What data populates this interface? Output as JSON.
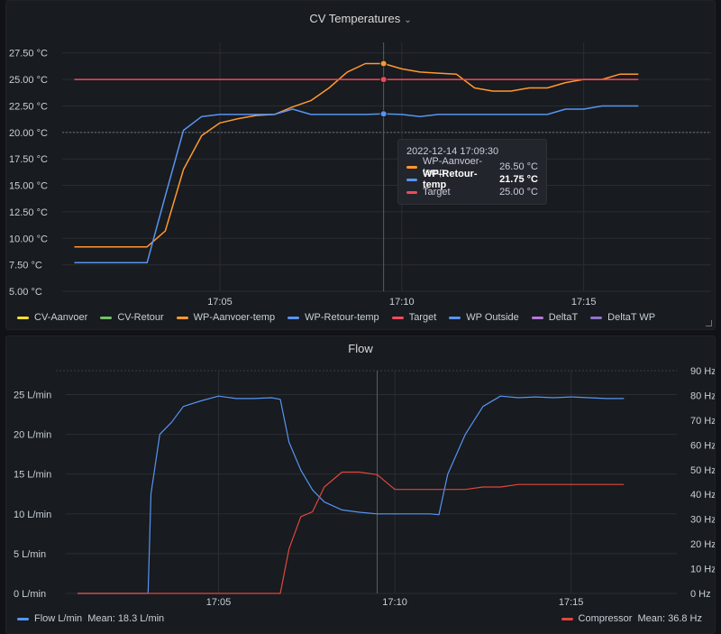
{
  "colors": {
    "orange": "#ff9830",
    "blue": "#5794f2",
    "red": "#f2495c",
    "yellow": "#fade2a",
    "green": "#73bf69",
    "purple": "#b877d9",
    "violet": "#8f74c9",
    "flow_blue": "#5794f2",
    "flow_red": "#e0473e"
  },
  "temp_panel": {
    "title": "CV Temperatures",
    "chevron_icon": "chevron-down-icon",
    "y_ticks": [
      "27.50 °C",
      "25.00 °C",
      "22.50 °C",
      "20.00 °C",
      "17.50 °C",
      "15.00 °C",
      "12.50 °C",
      "10.00 °C",
      "7.50 °C",
      "5.00 °C"
    ],
    "x_ticks": [
      "17:05",
      "17:10",
      "17:15"
    ],
    "legend": [
      {
        "name": "CV-Aanvoer",
        "color": "#fade2a"
      },
      {
        "name": "CV-Retour",
        "color": "#73bf69"
      },
      {
        "name": "WP-Aanvoer-temp",
        "color": "#ff9830"
      },
      {
        "name": "WP-Retour-temp",
        "color": "#5794f2"
      },
      {
        "name": "Target",
        "color": "#f2495c"
      },
      {
        "name": "WP Outside",
        "color": "#5794f2"
      },
      {
        "name": "DeltaT",
        "color": "#b877d9"
      },
      {
        "name": "DeltaT WP",
        "color": "#8f74c9"
      }
    ],
    "tooltip": {
      "time": "2022-12-14 17:09:30",
      "rows": [
        {
          "name": "WP-Aanvoer-temp",
          "value": "26.50 °C",
          "color": "#ff9830",
          "bold": false
        },
        {
          "name": "WP-Retour-temp",
          "value": "21.75 °C",
          "color": "#5794f2",
          "bold": true
        },
        {
          "name": "Target",
          "value": "25.00 °C",
          "color": "#f2495c",
          "bold": false
        }
      ]
    }
  },
  "flow_panel": {
    "title": "Flow",
    "y_left_ticks": [
      "25 L/min",
      "20 L/min",
      "15 L/min",
      "10 L/min",
      "5 L/min",
      "0 L/min"
    ],
    "y_right_ticks": [
      "90 Hz",
      "80 Hz",
      "70 Hz",
      "60 Hz",
      "50 Hz",
      "40 Hz",
      "30 Hz",
      "20 Hz",
      "10 Hz",
      "0 Hz"
    ],
    "x_ticks": [
      "17:05",
      "17:10",
      "17:15"
    ],
    "legend_left": {
      "name": "Flow L/min",
      "mean": "Mean: 18.3 L/min",
      "color": "#5794f2"
    },
    "legend_right": {
      "name": "Compressor",
      "mean": "Mean: 36.8 Hz",
      "color": "#e0473e"
    }
  },
  "chart_data": [
    {
      "type": "line",
      "title": "CV Temperatures",
      "ylabel": "°C",
      "ylim": [
        5,
        28.5
      ],
      "x": [
        "17:01",
        "17:02",
        "17:03",
        "17:03:30",
        "17:04",
        "17:04:30",
        "17:05",
        "17:05:30",
        "17:06",
        "17:06:30",
        "17:07",
        "17:07:30",
        "17:08",
        "17:08:30",
        "17:09",
        "17:09:30",
        "17:10",
        "17:10:30",
        "17:11",
        "17:11:30",
        "17:12",
        "17:12:30",
        "17:13",
        "17:13:30",
        "17:14",
        "17:14:30",
        "17:15",
        "17:15:30",
        "17:16",
        "17:16:30"
      ],
      "series": [
        {
          "name": "WP-Aanvoer-temp",
          "values": [
            9.2,
            9.2,
            9.2,
            10.7,
            16.5,
            19.7,
            20.9,
            21.3,
            21.6,
            21.7,
            22.4,
            23.0,
            24.2,
            25.7,
            26.5,
            26.5,
            26.0,
            25.7,
            25.6,
            25.5,
            24.2,
            23.9,
            23.9,
            24.2,
            24.2,
            24.7,
            25.0,
            25.0,
            25.5,
            25.5
          ]
        },
        {
          "name": "WP-Retour-temp",
          "values": [
            7.7,
            7.7,
            7.7,
            14.0,
            20.2,
            21.5,
            21.7,
            21.7,
            21.7,
            21.7,
            22.2,
            21.7,
            21.7,
            21.7,
            21.7,
            21.75,
            21.7,
            21.5,
            21.7,
            21.7,
            21.7,
            21.7,
            21.7,
            21.7,
            21.7,
            22.2,
            22.2,
            22.5,
            22.5,
            22.5
          ]
        },
        {
          "name": "Target",
          "values": [
            25,
            25,
            25,
            25,
            25,
            25,
            25,
            25,
            25,
            25,
            25,
            25,
            25,
            25,
            25,
            25,
            25,
            25,
            25,
            25,
            25,
            25,
            25,
            25,
            25,
            25,
            25,
            25,
            25,
            25
          ]
        }
      ]
    },
    {
      "type": "line",
      "title": "Flow",
      "ylabel": "L/min",
      "ylim": [
        0,
        28
      ],
      "y2label": "Hz",
      "y2lim": [
        0,
        90
      ],
      "x": [
        "17:01",
        "17:02",
        "17:03",
        "17:03:05",
        "17:03:20",
        "17:03:40",
        "17:04",
        "17:04:30",
        "17:05",
        "17:05:30",
        "17:06",
        "17:06:30",
        "17:06:45",
        "17:07",
        "17:07:20",
        "17:07:40",
        "17:08",
        "17:08:30",
        "17:09",
        "17:09:30",
        "17:10",
        "17:10:30",
        "17:11",
        "17:11:15",
        "17:11:30",
        "17:12",
        "17:12:30",
        "17:13",
        "17:13:30",
        "17:14",
        "17:14:30",
        "17:15",
        "17:15:30",
        "17:16",
        "17:16:30"
      ],
      "series": [
        {
          "name": "Flow L/min",
          "axis": "left",
          "values": [
            0,
            0,
            0,
            12.5,
            20,
            21.5,
            23.5,
            24.2,
            24.8,
            24.5,
            24.5,
            24.6,
            24.4,
            19,
            15.5,
            13,
            11.5,
            10.5,
            10.2,
            10.0,
            10.0,
            10.0,
            10.0,
            9.9,
            15,
            20,
            23.5,
            24.8,
            24.6,
            24.7,
            24.6,
            24.7,
            24.6,
            24.5,
            24.5
          ]
        },
        {
          "name": "Compressor",
          "axis": "right",
          "values": [
            0,
            0,
            0,
            0,
            0,
            0,
            0,
            0,
            0,
            0,
            0,
            0,
            0,
            18,
            31,
            33,
            43,
            49,
            49,
            48,
            42,
            42,
            42,
            42,
            42,
            42,
            43,
            43,
            44,
            44,
            44,
            44,
            44,
            44,
            44
          ]
        }
      ]
    }
  ]
}
